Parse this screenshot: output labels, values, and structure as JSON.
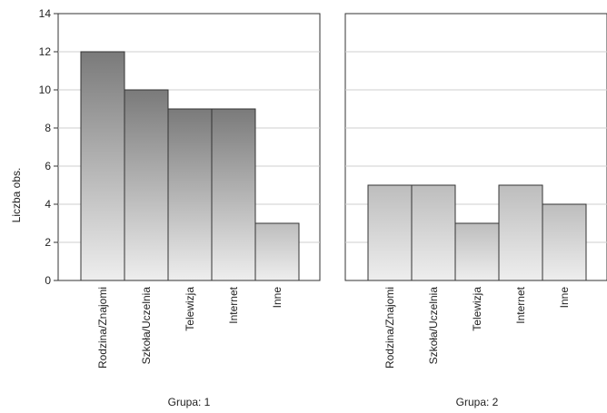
{
  "chart_data": {
    "type": "bar",
    "ylabel": "Liczba obs.",
    "ylim": [
      0,
      14
    ],
    "yticks": [
      0,
      2,
      4,
      6,
      8,
      10,
      12,
      14
    ],
    "grid": true,
    "colors": {
      "bar_top_group1": "#7f7f7f",
      "bar_bottom": "#ececec",
      "bar_stroke": "#333333",
      "grid": "#cfcfcf"
    },
    "panels": [
      {
        "label": "Grupa: 1",
        "categories": [
          "Rodzina/Znajomi",
          "Szkoła/Uczelnia",
          "Telewizja",
          "Internet",
          "Inne"
        ],
        "values": [
          12,
          10,
          9,
          9,
          3
        ]
      },
      {
        "label": "Grupa: 2",
        "categories": [
          "Rodzina/Znajomi",
          "Szkoła/Uczelnia",
          "Telewizja",
          "Internet",
          "Inne"
        ],
        "values": [
          5,
          5,
          3,
          5,
          4
        ]
      }
    ]
  }
}
